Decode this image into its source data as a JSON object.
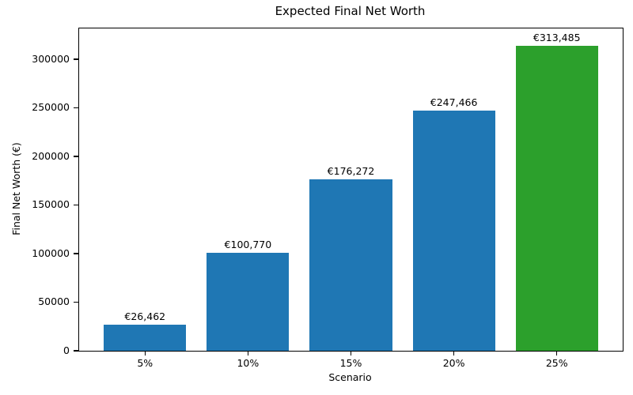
{
  "figure": {
    "background_color": "#ffffff"
  },
  "chart_data": {
    "type": "bar",
    "title": "Expected Final Net Worth",
    "xlabel": "Scenario",
    "ylabel": "Final Net Worth (€)",
    "categories": [
      "5%",
      "10%",
      "15%",
      "20%",
      "25%"
    ],
    "values": [
      26462,
      100770,
      176272,
      247466,
      313485
    ],
    "bar_labels": [
      "€26,462",
      "€100,770",
      "€176,272",
      "€247,466",
      "€313,485"
    ],
    "bar_colors": [
      "#1f77b4",
      "#1f77b4",
      "#1f77b4",
      "#1f77b4",
      "#2ca02c"
    ],
    "yticks": [
      0,
      50000,
      100000,
      150000,
      200000,
      250000,
      300000
    ],
    "ytick_labels": [
      "0",
      "50000",
      "100000",
      "150000",
      "200000",
      "250000",
      "300000"
    ],
    "ylim": [
      0,
      331700
    ],
    "x_axis_units_span": 5.28,
    "x_axis_first_center_offset": 0.64,
    "bar_width_units": 0.8,
    "grid": false,
    "legend_position": "none",
    "colors": {
      "default_bar": "#1f77b4",
      "highlight_bar": "#2ca02c",
      "axis": "#000000",
      "text": "#000000"
    }
  }
}
